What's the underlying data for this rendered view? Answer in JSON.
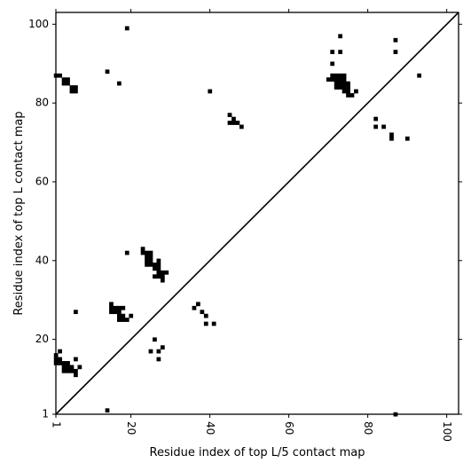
{
  "chart_data": {
    "type": "scatter",
    "marker": "square",
    "xlabel": "Residue index of top L/5 contact map",
    "ylabel": "Residue index of top L contact map",
    "xlim": [
      1,
      103
    ],
    "ylim": [
      1,
      103
    ],
    "xticks": [
      1,
      20,
      40,
      60,
      80,
      100
    ],
    "yticks": [
      1,
      20,
      40,
      60,
      80,
      100
    ],
    "xtick_labels": [
      "1",
      "20",
      "40",
      "60",
      "80",
      "100"
    ],
    "ytick_labels": [
      "1",
      "20",
      "40",
      "60",
      "80",
      "100"
    ],
    "diagonal": true,
    "grid": false,
    "colors": {
      "marker": "#000000",
      "line": "#000000",
      "background": "#ffffff"
    },
    "points": [
      [
        1,
        87
      ],
      [
        2,
        87
      ],
      [
        3,
        86
      ],
      [
        3,
        85
      ],
      [
        4,
        86
      ],
      [
        4,
        85
      ],
      [
        5,
        84
      ],
      [
        5,
        83
      ],
      [
        6,
        84
      ],
      [
        6,
        83
      ],
      [
        14,
        88
      ],
      [
        17,
        85
      ],
      [
        19,
        99
      ],
      [
        40,
        83
      ],
      [
        45,
        77
      ],
      [
        46,
        76
      ],
      [
        45,
        75
      ],
      [
        46,
        75
      ],
      [
        47,
        75
      ],
      [
        48,
        74
      ],
      [
        71,
        93
      ],
      [
        73,
        93
      ],
      [
        73,
        97
      ],
      [
        71,
        90
      ],
      [
        70,
        86
      ],
      [
        71,
        87
      ],
      [
        71,
        86
      ],
      [
        72,
        87
      ],
      [
        72,
        86
      ],
      [
        73,
        87
      ],
      [
        73,
        86
      ],
      [
        74,
        87
      ],
      [
        74,
        86
      ],
      [
        72,
        85
      ],
      [
        73,
        85
      ],
      [
        74,
        85
      ],
      [
        75,
        85
      ],
      [
        72,
        84
      ],
      [
        73,
        84
      ],
      [
        74,
        84
      ],
      [
        75,
        84
      ],
      [
        74,
        83
      ],
      [
        75,
        83
      ],
      [
        75,
        82
      ],
      [
        76,
        82
      ],
      [
        77,
        83
      ],
      [
        82,
        76
      ],
      [
        82,
        74
      ],
      [
        84,
        74
      ],
      [
        86,
        72
      ],
      [
        86,
        71
      ],
      [
        87,
        96
      ],
      [
        87,
        93
      ],
      [
        90,
        71
      ],
      [
        93,
        87
      ],
      [
        23,
        43
      ],
      [
        23,
        42
      ],
      [
        24,
        42
      ],
      [
        25,
        42
      ],
      [
        24,
        41
      ],
      [
        25,
        41
      ],
      [
        24,
        40
      ],
      [
        25,
        40
      ],
      [
        24,
        39
      ],
      [
        25,
        39
      ],
      [
        26,
        39
      ],
      [
        26,
        38
      ],
      [
        27,
        40
      ],
      [
        27,
        39
      ],
      [
        27,
        38
      ],
      [
        26,
        36
      ],
      [
        27,
        36
      ],
      [
        27,
        37
      ],
      [
        28,
        37
      ],
      [
        29,
        37
      ],
      [
        28,
        36
      ],
      [
        28,
        35
      ],
      [
        19,
        42
      ],
      [
        15,
        29
      ],
      [
        15,
        28
      ],
      [
        16,
        28
      ],
      [
        17,
        28
      ],
      [
        18,
        28
      ],
      [
        15,
        27
      ],
      [
        16,
        27
      ],
      [
        17,
        27
      ],
      [
        17,
        26
      ],
      [
        18,
        26
      ],
      [
        17,
        25
      ],
      [
        18,
        25
      ],
      [
        19,
        25
      ],
      [
        20,
        26
      ],
      [
        6,
        27
      ],
      [
        36,
        28
      ],
      [
        37,
        29
      ],
      [
        38,
        27
      ],
      [
        39,
        26
      ],
      [
        39,
        24
      ],
      [
        41,
        24
      ],
      [
        26,
        20
      ],
      [
        25,
        17
      ],
      [
        27,
        17
      ],
      [
        28,
        18
      ],
      [
        27,
        15
      ],
      [
        1,
        16
      ],
      [
        1,
        15
      ],
      [
        2,
        15
      ],
      [
        1,
        14
      ],
      [
        2,
        14
      ],
      [
        3,
        14
      ],
      [
        2,
        17
      ],
      [
        4,
        14
      ],
      [
        6,
        15
      ],
      [
        3,
        13
      ],
      [
        4,
        13
      ],
      [
        5,
        13
      ],
      [
        3,
        12
      ],
      [
        4,
        12
      ],
      [
        5,
        12
      ],
      [
        6,
        12
      ],
      [
        6,
        11
      ],
      [
        7,
        13
      ],
      [
        14,
        2
      ],
      [
        87,
        1
      ]
    ]
  }
}
